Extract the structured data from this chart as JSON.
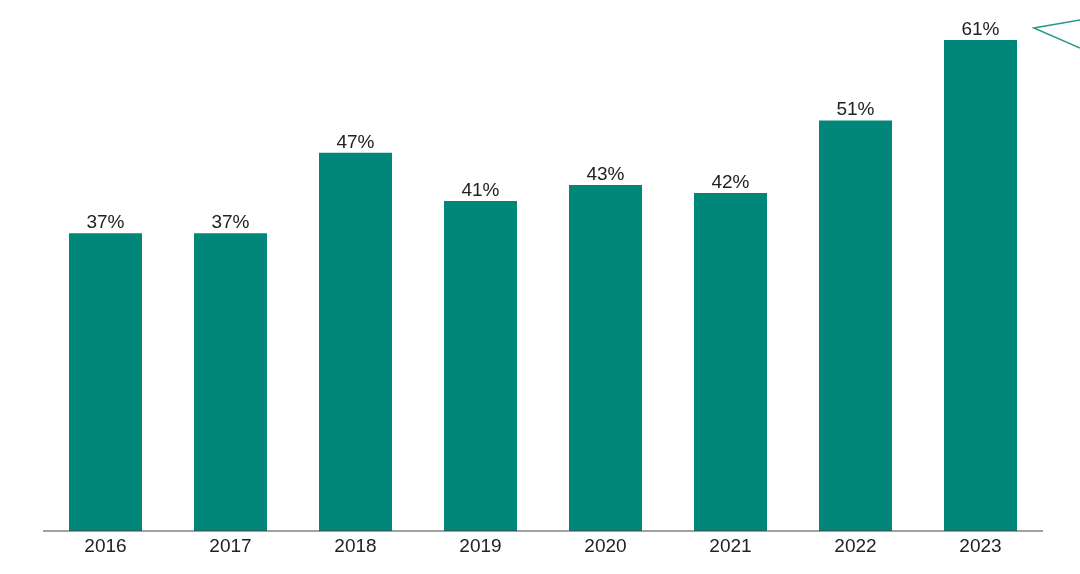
{
  "chart_data": {
    "type": "bar",
    "categories": [
      "2016",
      "2017",
      "2018",
      "2019",
      "2020",
      "2021",
      "2022",
      "2023"
    ],
    "values": [
      37,
      37,
      47,
      41,
      43,
      42,
      51,
      61
    ],
    "value_labels": [
      "37%",
      "37%",
      "47%",
      "41%",
      "43%",
      "42%",
      "51%",
      "61%"
    ],
    "color": "#00877a",
    "tick_labels": "x",
    "grid": false
  }
}
